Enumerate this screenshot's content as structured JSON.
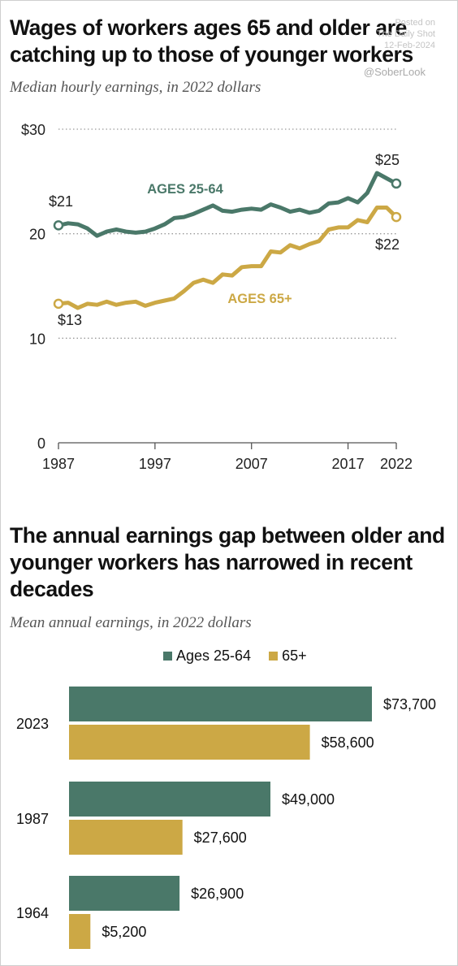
{
  "watermark": {
    "line1": "Posted on",
    "line2": "The Daily Shot",
    "line3": "12-Feb-2024",
    "handle": "@SoberLook"
  },
  "colors": {
    "green": "#4a7869",
    "gold": "#cca845",
    "grid": "#9a9a9a",
    "axis": "#555555"
  },
  "chart_data": [
    {
      "type": "line",
      "title": "Wages of workers ages 65 and older are catching up to those of younger workers",
      "subtitle": "Median hourly earnings, in 2022 dollars",
      "x_ticks": [
        "1987",
        "1997",
        "2007",
        "2017",
        "2022"
      ],
      "y_ticks": [
        "$30",
        "20",
        "10",
        "0"
      ],
      "y_tick_values": [
        30,
        20,
        10,
        0
      ],
      "xlim": [
        1987,
        2022
      ],
      "ylim": [
        0,
        30
      ],
      "grid": "horizontal dotted",
      "x": [
        1987,
        1988,
        1989,
        1990,
        1991,
        1992,
        1993,
        1994,
        1995,
        1996,
        1997,
        1998,
        1999,
        2000,
        2001,
        2002,
        2003,
        2004,
        2005,
        2006,
        2007,
        2008,
        2009,
        2010,
        2011,
        2012,
        2013,
        2014,
        2015,
        2016,
        2017,
        2018,
        2019,
        2020,
        2021,
        2022
      ],
      "series": [
        {
          "name": "AGES 25-64",
          "color": "#4a7869",
          "values": [
            20.8,
            21.0,
            20.9,
            20.5,
            19.8,
            20.2,
            20.4,
            20.2,
            20.1,
            20.2,
            20.5,
            20.9,
            21.5,
            21.6,
            21.9,
            22.3,
            22.7,
            22.2,
            22.1,
            22.3,
            22.4,
            22.3,
            22.8,
            22.5,
            22.1,
            22.3,
            22.0,
            22.2,
            22.9,
            23.0,
            23.4,
            23.0,
            23.9,
            25.8,
            25.3,
            24.8
          ],
          "start_label": "$21",
          "end_label": "$25"
        },
        {
          "name": "AGES 65+",
          "color": "#cca845",
          "values": [
            13.3,
            13.4,
            12.9,
            13.3,
            13.2,
            13.5,
            13.2,
            13.4,
            13.5,
            13.1,
            13.4,
            13.6,
            13.8,
            14.5,
            15.3,
            15.6,
            15.3,
            16.1,
            16.0,
            16.8,
            16.9,
            16.9,
            18.3,
            18.2,
            18.9,
            18.6,
            19.0,
            19.3,
            20.4,
            20.6,
            20.6,
            21.3,
            21.1,
            22.5,
            22.5,
            21.6
          ],
          "start_label": "$13",
          "end_label": "$22"
        }
      ]
    },
    {
      "type": "bar",
      "orientation": "horizontal",
      "title": "The annual earnings gap between older and younger workers has narrowed in recent decades",
      "subtitle": "Mean annual earnings, in 2022 dollars",
      "legend_position": "top-center",
      "categories": [
        "2023",
        "1987",
        "1964"
      ],
      "series": [
        {
          "name": "Ages 25-64",
          "color": "#4a7869",
          "values": [
            73700,
            49000,
            26900
          ],
          "labels": [
            "$73,700",
            "$49,000",
            "$26,900"
          ]
        },
        {
          "name": "65+",
          "color": "#cca845",
          "values": [
            58600,
            27600,
            5200
          ],
          "labels": [
            "$58,600",
            "$27,600",
            "$5,200"
          ]
        }
      ]
    }
  ]
}
